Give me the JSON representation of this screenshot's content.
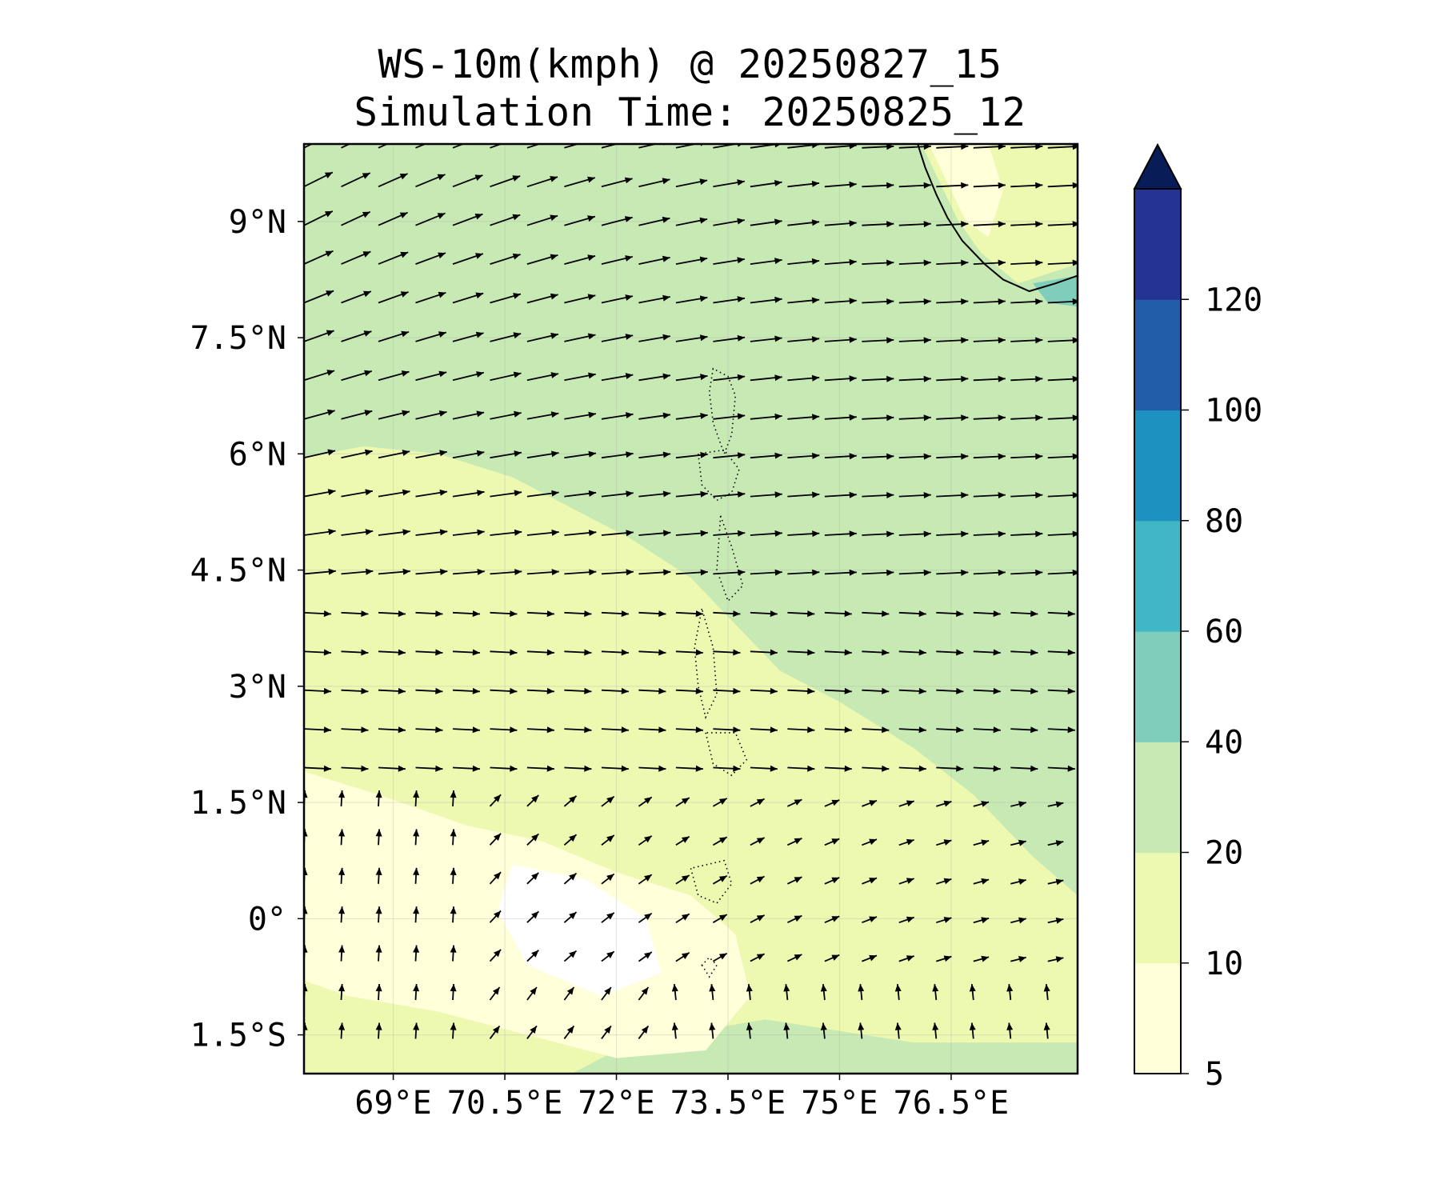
{
  "title": {
    "line1": "WS-10m(kmph) @ 20250827_15",
    "line2": "Simulation Time: 20250825_12"
  },
  "map": {
    "lon_range": [
      67.8,
      78.2
    ],
    "lat_range": [
      -2.0,
      10.0
    ],
    "lon_ticks": [
      {
        "value": 69.0,
        "label": "69°E"
      },
      {
        "value": 70.5,
        "label": "70.5°E"
      },
      {
        "value": 72.0,
        "label": "72°E"
      },
      {
        "value": 73.5,
        "label": "73.5°E"
      },
      {
        "value": 75.0,
        "label": "75°E"
      },
      {
        "value": 76.5,
        "label": "76.5°E"
      }
    ],
    "lat_ticks": [
      {
        "value": 9.0,
        "label": "9°N"
      },
      {
        "value": 7.5,
        "label": "7.5°N"
      },
      {
        "value": 6.0,
        "label": "6°N"
      },
      {
        "value": 4.5,
        "label": "4.5°N"
      },
      {
        "value": 3.0,
        "label": "3°N"
      },
      {
        "value": 1.5,
        "label": "1.5°N"
      },
      {
        "value": 0.0,
        "label": "0°"
      },
      {
        "value": -1.5,
        "label": "1.5°S"
      }
    ],
    "gridlines": true,
    "background_level": "20-40",
    "zone_10_20": [
      [
        67.8,
        5.95
      ],
      [
        68.6,
        6.1
      ],
      [
        69.6,
        6.0
      ],
      [
        70.6,
        5.7
      ],
      [
        71.4,
        5.3
      ],
      [
        72.2,
        4.9
      ],
      [
        73.0,
        4.4
      ],
      [
        73.6,
        3.8
      ],
      [
        74.2,
        3.2
      ],
      [
        75.0,
        2.8
      ],
      [
        76.0,
        2.2
      ],
      [
        76.8,
        1.6
      ],
      [
        77.6,
        0.8
      ],
      [
        78.2,
        0.3
      ],
      [
        78.2,
        -1.6
      ],
      [
        76.0,
        -1.6
      ],
      [
        74.0,
        -1.3
      ],
      [
        72.2,
        -1.6
      ],
      [
        71.4,
        -2.0
      ],
      [
        67.8,
        -2.0
      ]
    ],
    "zone_5_10": [
      [
        67.8,
        1.9
      ],
      [
        68.8,
        1.6
      ],
      [
        70.0,
        1.2
      ],
      [
        71.0,
        1.0
      ],
      [
        72.0,
        0.6
      ],
      [
        73.0,
        0.3
      ],
      [
        73.6,
        -0.2
      ],
      [
        73.8,
        -1.0
      ],
      [
        73.2,
        -1.7
      ],
      [
        72.0,
        -1.8
      ],
      [
        70.8,
        -1.5
      ],
      [
        69.6,
        -1.2
      ],
      [
        68.4,
        -1.0
      ],
      [
        67.8,
        -0.8
      ]
    ],
    "zone_below_5": [
      [
        70.6,
        0.7
      ],
      [
        71.6,
        0.5
      ],
      [
        72.4,
        0.0
      ],
      [
        72.6,
        -0.7
      ],
      [
        71.8,
        -1.0
      ],
      [
        70.8,
        -0.6
      ],
      [
        70.4,
        0.1
      ]
    ],
    "coast_land_10_20": [
      [
        76.0,
        10.0
      ],
      [
        78.2,
        10.0
      ],
      [
        78.2,
        8.45
      ],
      [
        77.4,
        8.2
      ],
      [
        76.9,
        8.6
      ],
      [
        76.6,
        9.0
      ],
      [
        76.3,
        9.6
      ],
      [
        76.1,
        10.0
      ]
    ],
    "coast_land_5_10": [
      [
        76.2,
        10.0
      ],
      [
        77.0,
        10.0
      ],
      [
        77.2,
        9.4
      ],
      [
        77.0,
        8.8
      ],
      [
        76.7,
        9.0
      ],
      [
        76.4,
        9.6
      ]
    ],
    "coast_spot_40_60": [
      [
        77.6,
        8.2
      ],
      [
        78.2,
        8.3
      ],
      [
        78.2,
        7.9
      ],
      [
        77.8,
        7.95
      ]
    ],
    "coastline": [
      [
        76.05,
        10.0
      ],
      [
        76.15,
        9.7
      ],
      [
        76.3,
        9.35
      ],
      [
        76.45,
        9.05
      ],
      [
        76.65,
        8.75
      ],
      [
        76.95,
        8.45
      ],
      [
        77.2,
        8.25
      ],
      [
        77.55,
        8.1
      ],
      [
        77.9,
        8.2
      ],
      [
        78.2,
        8.3
      ]
    ],
    "islands": [
      [
        [
          73.3,
          7.1
        ],
        [
          73.25,
          6.8
        ],
        [
          73.3,
          6.4
        ],
        [
          73.45,
          6.0
        ],
        [
          73.55,
          6.25
        ],
        [
          73.6,
          6.75
        ],
        [
          73.5,
          7.0
        ]
      ],
      [
        [
          73.1,
          6.0
        ],
        [
          73.15,
          5.6
        ],
        [
          73.35,
          5.4
        ],
        [
          73.55,
          5.5
        ],
        [
          73.65,
          5.8
        ],
        [
          73.45,
          6.05
        ]
      ],
      [
        [
          73.4,
          5.2
        ],
        [
          73.55,
          4.8
        ],
        [
          73.7,
          4.3
        ],
        [
          73.5,
          4.1
        ],
        [
          73.35,
          4.5
        ]
      ],
      [
        [
          73.15,
          4.0
        ],
        [
          73.05,
          3.5
        ],
        [
          73.1,
          3.0
        ],
        [
          73.2,
          2.6
        ],
        [
          73.35,
          2.9
        ],
        [
          73.3,
          3.5
        ]
      ],
      [
        [
          73.2,
          2.4
        ],
        [
          73.3,
          2.0
        ],
        [
          73.55,
          1.85
        ],
        [
          73.75,
          2.05
        ],
        [
          73.6,
          2.4
        ]
      ],
      [
        [
          73.0,
          0.65
        ],
        [
          73.1,
          0.3
        ],
        [
          73.35,
          0.2
        ],
        [
          73.55,
          0.45
        ],
        [
          73.45,
          0.75
        ]
      ],
      [
        [
          73.15,
          -0.6
        ],
        [
          73.25,
          -0.75
        ],
        [
          73.35,
          -0.6
        ],
        [
          73.25,
          -0.5
        ]
      ]
    ]
  },
  "colorbar": {
    "levels": [
      5,
      10,
      20,
      40,
      60,
      80,
      100,
      120
    ],
    "labels": [
      "5",
      "10",
      "20",
      "40",
      "60",
      "80",
      "100",
      "120"
    ],
    "colors": [
      "#ffffd9",
      "#edf8b1",
      "#c7e9b4",
      "#7fcdbb",
      "#41b6c4",
      "#1d91c0",
      "#225ea8",
      "#253494"
    ],
    "extend_color": "#081d58",
    "extend": "max"
  },
  "wind_vectors": {
    "grid_step_deg": 0.5,
    "description_levels": "westerly north of 4N, weak and south-easterly in the south-west"
  }
}
